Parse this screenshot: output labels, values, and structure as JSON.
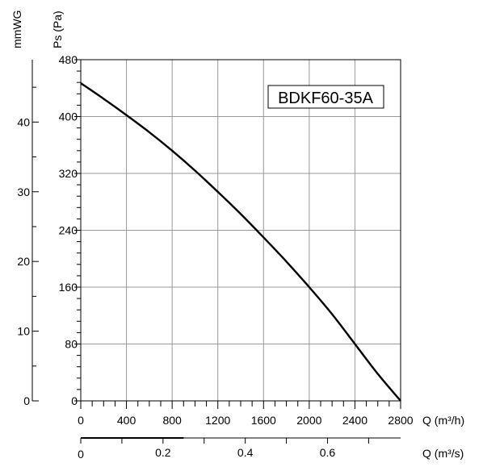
{
  "chart_data": {
    "type": "line",
    "title": "BDKF60-35A",
    "xlabel": "Q (m³/h)",
    "x2label": "Q (m³/s)",
    "ylabel": "Ps (Pa)",
    "y2label": "mmWG",
    "xlim": [
      0,
      2800
    ],
    "ylim": [
      0,
      480
    ],
    "x2lim": [
      0,
      0.7778
    ],
    "y2lim": [
      0,
      48.95
    ],
    "x_ticks": [
      "0",
      "400",
      "800",
      "1200",
      "1600",
      "2000",
      "2400",
      "2800"
    ],
    "y_ticks": [
      "0",
      "80",
      "160",
      "240",
      "320",
      "400",
      "480"
    ],
    "x2_ticks": [
      "0",
      "0.2",
      "0.4",
      "0.6"
    ],
    "y2_ticks": [
      "0",
      "10",
      "20",
      "30",
      "40"
    ],
    "grid": true,
    "series": [
      {
        "x": [
          0,
          200,
          400,
          600,
          800,
          1000,
          1200,
          1400,
          1600,
          1800,
          2000,
          2200,
          2400,
          2600,
          2800
        ],
        "y": [
          447,
          425,
          402,
          378,
          352,
          324,
          294,
          263,
          230,
          196,
          160,
          122,
          80,
          38,
          0
        ]
      }
    ]
  }
}
